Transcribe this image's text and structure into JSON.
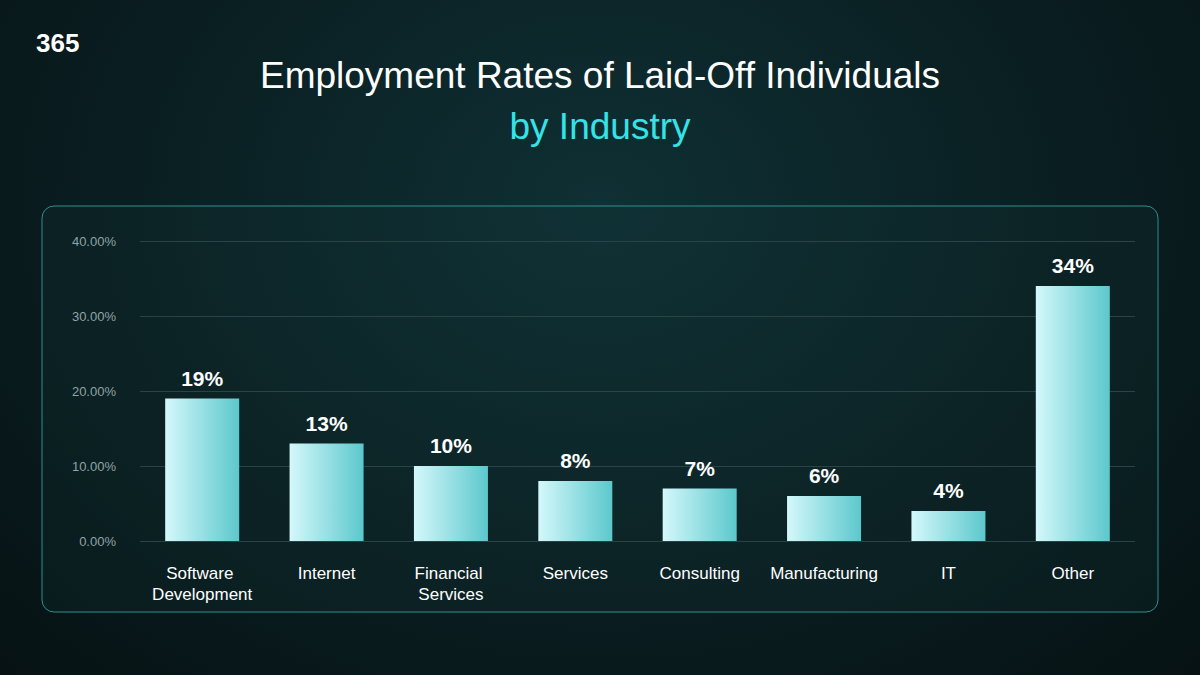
{
  "chart_data": {
    "type": "bar",
    "title": "Employment Rates of Laid-Off Individuals",
    "subtitle": "by Industry",
    "annotations": [
      "365"
    ],
    "categories": [
      "Software Development",
      "Internet",
      "Financial Services",
      "Services",
      "Consulting",
      "Manufacturing",
      "IT",
      "Other"
    ],
    "values": [
      19,
      13,
      10,
      8,
      7,
      6,
      4,
      34
    ],
    "value_labels": [
      "19%",
      "13%",
      "10%",
      "8%",
      "7%",
      "6%",
      "4%",
      "34%"
    ],
    "data_labels": true,
    "color": "#5cc8cc",
    "ylim": [
      0,
      40
    ],
    "yticks": [
      {
        "value": 0,
        "label": "0.00%"
      },
      {
        "value": 10,
        "label": "10.00%"
      },
      {
        "value": 20,
        "label": "20.00%"
      },
      {
        "value": 30,
        "label": "30.00%"
      },
      {
        "value": 40,
        "label": "40.00%"
      }
    ],
    "grid": true
  }
}
